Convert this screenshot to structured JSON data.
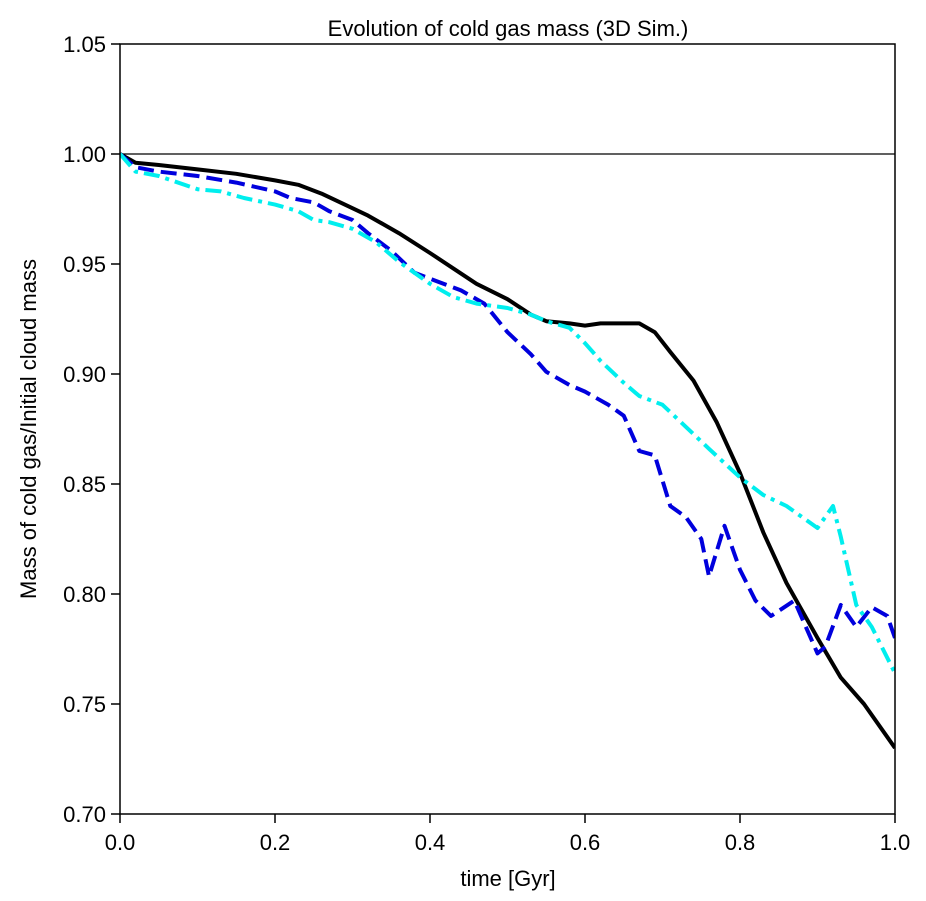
{
  "chart_data": {
    "type": "line",
    "title": "Evolution of cold gas mass (3D Sim.)",
    "xlabel": "time [Gyr]",
    "ylabel": "Mass of cold gas/Initial cloud mass",
    "xlim": [
      0.0,
      1.0
    ],
    "ylim": [
      0.7,
      1.05
    ],
    "xticks": [
      "0.0",
      "0.2",
      "0.4",
      "0.6",
      "0.8",
      "1.0"
    ],
    "yticks": [
      "0.70",
      "0.75",
      "0.80",
      "0.85",
      "0.90",
      "0.95",
      "1.00",
      "1.05"
    ],
    "reference_line": {
      "y": 1.0,
      "color": "#000000"
    },
    "legend": "none",
    "series": [
      {
        "name": "black-solid",
        "color": "#000000",
        "style": "solid",
        "x": [
          0.0,
          0.02,
          0.05,
          0.1,
          0.15,
          0.2,
          0.23,
          0.26,
          0.29,
          0.32,
          0.36,
          0.4,
          0.43,
          0.46,
          0.5,
          0.53,
          0.55,
          0.58,
          0.6,
          0.62,
          0.65,
          0.67,
          0.69,
          0.71,
          0.74,
          0.77,
          0.8,
          0.83,
          0.86,
          0.9,
          0.93,
          0.96,
          1.0
        ],
        "y": [
          1.0,
          0.996,
          0.995,
          0.993,
          0.991,
          0.988,
          0.986,
          0.982,
          0.977,
          0.972,
          0.964,
          0.955,
          0.948,
          0.941,
          0.934,
          0.927,
          0.924,
          0.923,
          0.922,
          0.923,
          0.923,
          0.923,
          0.919,
          0.91,
          0.897,
          0.878,
          0.855,
          0.828,
          0.805,
          0.78,
          0.762,
          0.75,
          0.73
        ]
      },
      {
        "name": "blue-dashed",
        "color": "#0000dd",
        "style": "dashed",
        "x": [
          0.0,
          0.02,
          0.05,
          0.1,
          0.15,
          0.2,
          0.22,
          0.25,
          0.27,
          0.3,
          0.32,
          0.35,
          0.38,
          0.41,
          0.44,
          0.47,
          0.5,
          0.53,
          0.55,
          0.58,
          0.6,
          0.63,
          0.65,
          0.67,
          0.69,
          0.71,
          0.73,
          0.75,
          0.76,
          0.78,
          0.8,
          0.82,
          0.84,
          0.87,
          0.9,
          0.91,
          0.93,
          0.95,
          0.97,
          0.99,
          1.0
        ],
        "y": [
          1.0,
          0.994,
          0.992,
          0.99,
          0.987,
          0.983,
          0.98,
          0.978,
          0.974,
          0.97,
          0.964,
          0.956,
          0.946,
          0.942,
          0.938,
          0.932,
          0.919,
          0.909,
          0.901,
          0.895,
          0.892,
          0.886,
          0.881,
          0.865,
          0.863,
          0.84,
          0.835,
          0.825,
          0.808,
          0.831,
          0.811,
          0.797,
          0.79,
          0.797,
          0.773,
          0.776,
          0.795,
          0.785,
          0.794,
          0.79,
          0.78
        ]
      },
      {
        "name": "cyan-dashdot",
        "color": "#00eeee",
        "style": "dashdot",
        "x": [
          0.0,
          0.02,
          0.05,
          0.1,
          0.13,
          0.16,
          0.2,
          0.23,
          0.25,
          0.27,
          0.3,
          0.33,
          0.36,
          0.4,
          0.43,
          0.46,
          0.5,
          0.53,
          0.55,
          0.58,
          0.6,
          0.62,
          0.65,
          0.67,
          0.7,
          0.73,
          0.76,
          0.8,
          0.83,
          0.86,
          0.9,
          0.92,
          0.93,
          0.95,
          0.97,
          1.0
        ],
        "y": [
          1.0,
          0.992,
          0.99,
          0.984,
          0.983,
          0.98,
          0.977,
          0.974,
          0.97,
          0.969,
          0.966,
          0.96,
          0.951,
          0.941,
          0.935,
          0.932,
          0.93,
          0.927,
          0.924,
          0.921,
          0.914,
          0.906,
          0.896,
          0.89,
          0.886,
          0.876,
          0.866,
          0.853,
          0.845,
          0.84,
          0.83,
          0.84,
          0.826,
          0.795,
          0.785,
          0.764
        ]
      }
    ]
  }
}
